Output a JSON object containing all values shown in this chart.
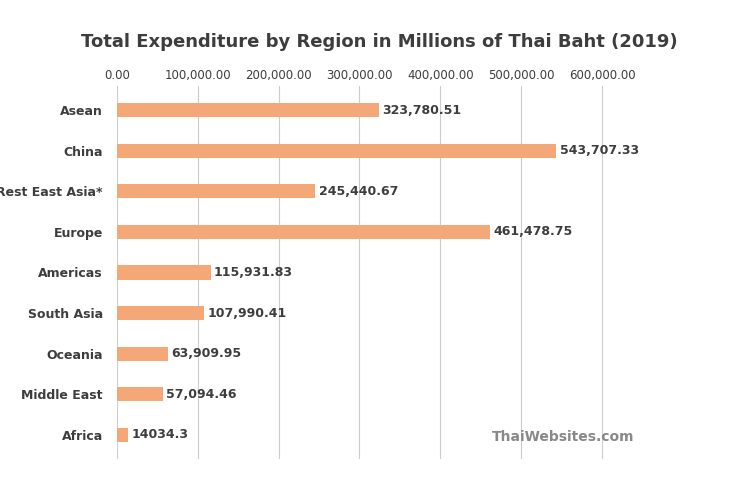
{
  "title": "Total Expenditure by Region in Millions of Thai Baht (2019)",
  "categories": [
    "Asean",
    "China",
    "Rest East Asia*",
    "Europe",
    "Americas",
    "South Asia",
    "Oceania",
    "Middle East",
    "Africa"
  ],
  "values": [
    323780.51,
    543707.33,
    245440.67,
    461478.75,
    115931.83,
    107990.41,
    63909.95,
    57094.46,
    14034.3
  ],
  "labels": [
    "323,780.51",
    "543,707.33",
    "245,440.67",
    "461,478.75",
    "115,931.83",
    "107,990.41",
    "63,909.95",
    "57,094.46",
    "14034.3"
  ],
  "bar_color": "#F4A878",
  "background_color": "#ffffff",
  "xlim": [
    0,
    650000
  ],
  "xticks": [
    0,
    100000,
    200000,
    300000,
    400000,
    500000,
    600000
  ],
  "xtick_labels": [
    "0.00",
    "100,000.00",
    "200,000.00",
    "300,000.00",
    "400,000.00",
    "500,000.00",
    "600,000.00"
  ],
  "title_fontsize": 13,
  "label_fontsize": 9,
  "tick_fontsize": 8.5,
  "watermark": "ThaiWebsites.com",
  "watermark_fontsize": 10,
  "grid_color": "#cccccc",
  "text_color": "#3d3d3d",
  "label_color": "#3d3d3d"
}
